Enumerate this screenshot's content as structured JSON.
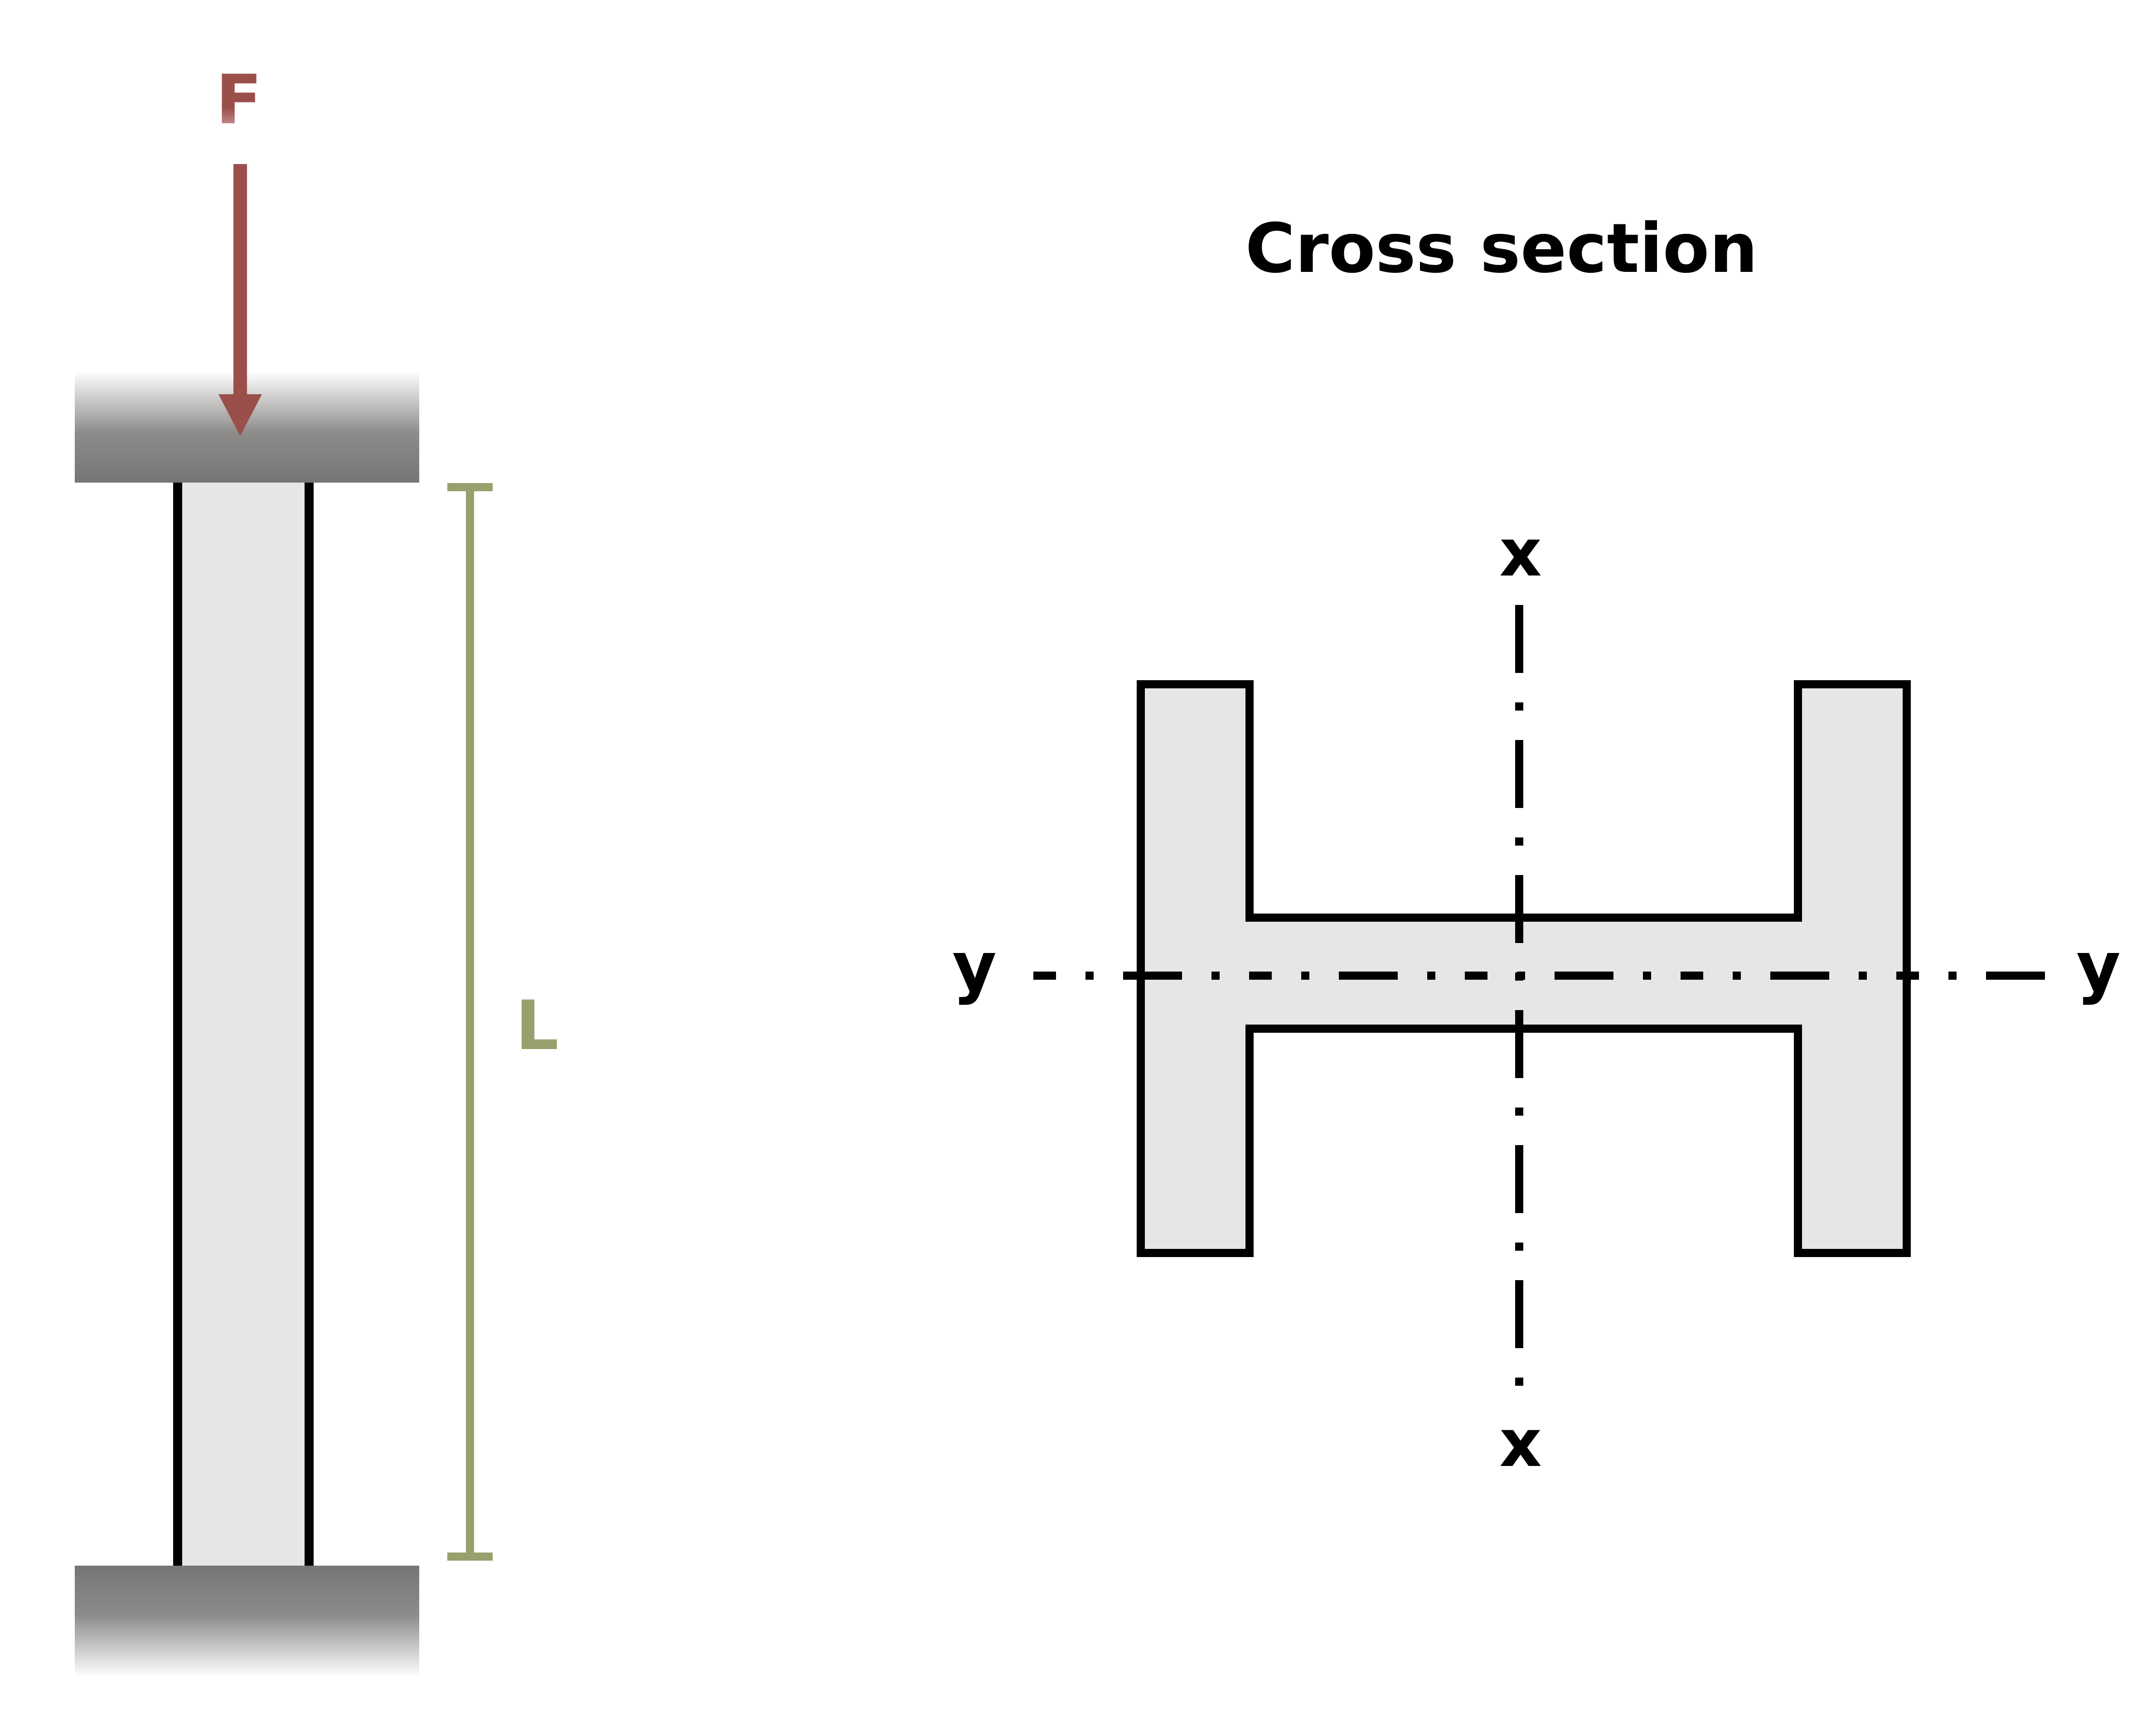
{
  "force": {
    "label": "F",
    "color": "#9b4f4b"
  },
  "length": {
    "label": "L",
    "color": "#98a06e"
  },
  "cross_section": {
    "title": "Cross section"
  },
  "axes": {
    "x_top": "x",
    "x_bottom": "x",
    "y_left": "y",
    "y_right": "y"
  },
  "colors": {
    "fill": "#e6e6e6",
    "outline": "#000000",
    "support": "#7a7876"
  }
}
